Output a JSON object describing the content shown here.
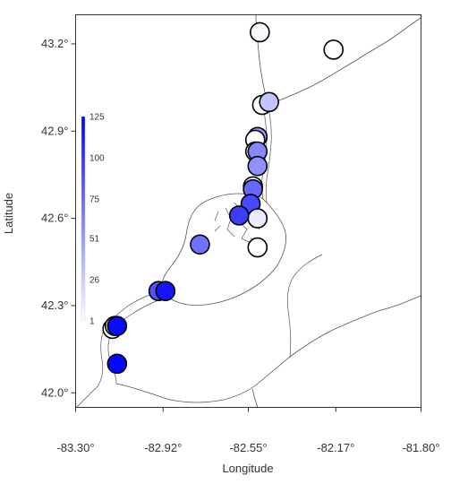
{
  "chart_data": {
    "type": "scatter",
    "title": "",
    "xlabel": "Longitude",
    "ylabel": "Latitude",
    "xlim": [
      -83.3,
      -81.8
    ],
    "ylim": [
      41.95,
      43.3
    ],
    "x_ticks": [
      {
        "value": -83.3,
        "label": "-83.30°"
      },
      {
        "value": -82.92,
        "label": "-82.92°"
      },
      {
        "value": -82.55,
        "label": "-82.55°"
      },
      {
        "value": -82.17,
        "label": "-82.17°"
      },
      {
        "value": -81.8,
        "label": "-81.80°"
      }
    ],
    "y_ticks": [
      {
        "value": 42.0,
        "label": "42.0°"
      },
      {
        "value": 42.3,
        "label": "42.3°"
      },
      {
        "value": 42.6,
        "label": "42.6°"
      },
      {
        "value": 42.9,
        "label": "42.9°"
      },
      {
        "value": 43.2,
        "label": "43.2°"
      }
    ],
    "color_scale": {
      "min": 1,
      "max": 125,
      "low_color": "#ffffff",
      "high_color": "#0000ff",
      "labels": [
        "125",
        "100",
        "75",
        "51",
        "26",
        "1"
      ],
      "label_values": [
        125,
        100,
        75,
        51,
        26,
        1
      ]
    },
    "points": [
      {
        "lon": -82.5,
        "lat": 43.24,
        "value": 5
      },
      {
        "lon": -82.18,
        "lat": 43.18,
        "value": 1
      },
      {
        "lon": -82.49,
        "lat": 42.99,
        "value": 1
      },
      {
        "lon": -82.46,
        "lat": 43.0,
        "value": 30
      },
      {
        "lon": -82.51,
        "lat": 42.88,
        "value": 50
      },
      {
        "lon": -82.52,
        "lat": 42.87,
        "value": 1
      },
      {
        "lon": -82.52,
        "lat": 42.83,
        "value": 1
      },
      {
        "lon": -82.51,
        "lat": 42.83,
        "value": 60
      },
      {
        "lon": -82.51,
        "lat": 42.78,
        "value": 55
      },
      {
        "lon": -82.53,
        "lat": 42.71,
        "value": 1
      },
      {
        "lon": -82.53,
        "lat": 42.7,
        "value": 75
      },
      {
        "lon": -82.54,
        "lat": 42.65,
        "value": 90
      },
      {
        "lon": -82.51,
        "lat": 42.6,
        "value": 10
      },
      {
        "lon": -82.51,
        "lat": 42.5,
        "value": 1
      },
      {
        "lon": -82.59,
        "lat": 42.61,
        "value": 95
      },
      {
        "lon": -82.76,
        "lat": 42.51,
        "value": 70
      },
      {
        "lon": -82.94,
        "lat": 42.35,
        "value": 85
      },
      {
        "lon": -82.91,
        "lat": 42.35,
        "value": 115
      },
      {
        "lon": -83.14,
        "lat": 42.22,
        "value": 1
      },
      {
        "lon": -83.13,
        "lat": 42.23,
        "value": 1
      },
      {
        "lon": -83.12,
        "lat": 42.23,
        "value": 120
      },
      {
        "lon": -83.12,
        "lat": 42.1,
        "value": 122
      }
    ]
  }
}
